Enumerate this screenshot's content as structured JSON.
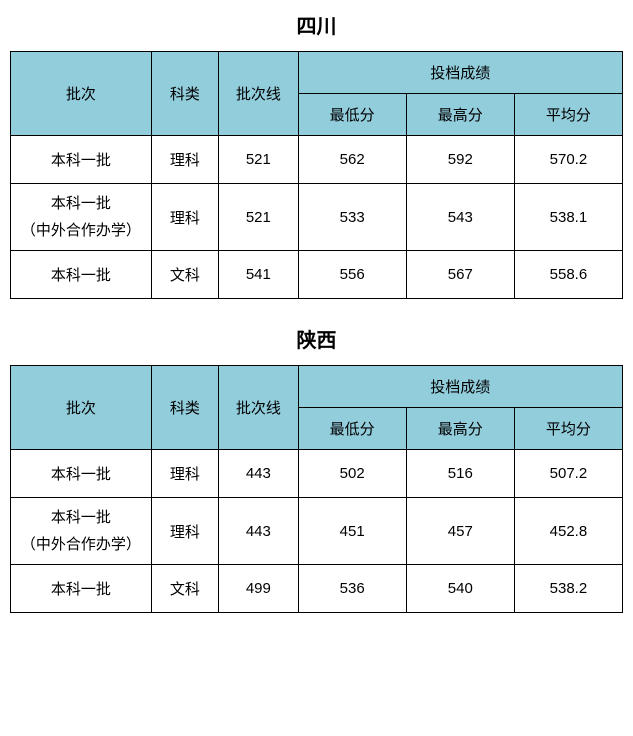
{
  "header_bg_color": "#92cddc",
  "cell_bg_color": "#ffffff",
  "border_color": "#000000",
  "text_color": "#000000",
  "title_fontsize": 20,
  "cell_fontsize": 15,
  "sections": [
    {
      "title": "四川",
      "headers": {
        "batch": "批次",
        "subject": "科类",
        "line": "批次线",
        "score_group": "投档成绩",
        "min": "最低分",
        "max": "最高分",
        "avg": "平均分"
      },
      "rows": [
        {
          "batch": "本科一批",
          "batch_multi": false,
          "subject": "理科",
          "line": "521",
          "min": "562",
          "max": "592",
          "avg": "570.2"
        },
        {
          "batch_line1": "本科一批",
          "batch_line2": "（中外合作办学）",
          "batch_multi": true,
          "subject": "理科",
          "line": "521",
          "min": "533",
          "max": "543",
          "avg": "538.1"
        },
        {
          "batch": "本科一批",
          "batch_multi": false,
          "subject": "文科",
          "line": "541",
          "min": "556",
          "max": "567",
          "avg": "558.6"
        }
      ]
    },
    {
      "title": "陕西",
      "headers": {
        "batch": "批次",
        "subject": "科类",
        "line": "批次线",
        "score_group": "投档成绩",
        "min": "最低分",
        "max": "最高分",
        "avg": "平均分"
      },
      "rows": [
        {
          "batch": "本科一批",
          "batch_multi": false,
          "subject": "理科",
          "line": "443",
          "min": "502",
          "max": "516",
          "avg": "507.2"
        },
        {
          "batch_line1": "本科一批",
          "batch_line2": "（中外合作办学）",
          "batch_multi": true,
          "subject": "理科",
          "line": "443",
          "min": "451",
          "max": "457",
          "avg": "452.8"
        },
        {
          "batch": "本科一批",
          "batch_multi": false,
          "subject": "文科",
          "line": "499",
          "min": "536",
          "max": "540",
          "avg": "538.2"
        }
      ]
    }
  ]
}
